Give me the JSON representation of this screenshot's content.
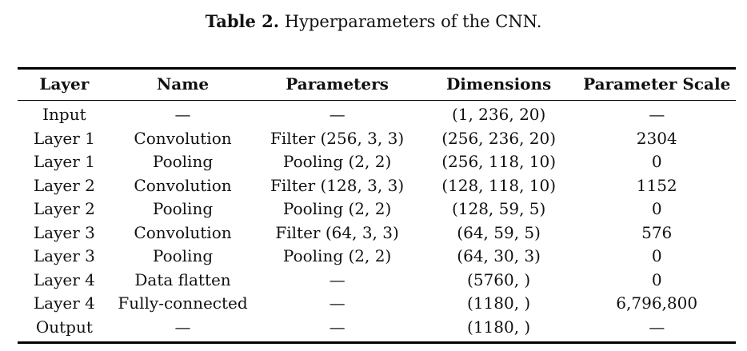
{
  "title": {
    "label": "Table 2.",
    "text": " Hyperparameters of the CNN."
  },
  "table": {
    "headers": [
      "Layer",
      "Name",
      "Parameters",
      "Dimensions",
      "Parameter Scale"
    ],
    "rows": [
      [
        "Input",
        "—",
        "—",
        "(1, 236, 20)",
        "—"
      ],
      [
        "Layer 1",
        "Convolution",
        "Filter (256, 3, 3)",
        "(256, 236, 20)",
        "2304"
      ],
      [
        "Layer 1",
        "Pooling",
        "Pooling (2, 2)",
        "(256, 118, 10)",
        "0"
      ],
      [
        "Layer 2",
        "Convolution",
        "Filter (128, 3, 3)",
        "(128, 118, 10)",
        "1152"
      ],
      [
        "Layer 2",
        "Pooling",
        "Pooling (2, 2)",
        "(128, 59, 5)",
        "0"
      ],
      [
        "Layer 3",
        "Convolution",
        "Filter (64, 3, 3)",
        "(64, 59, 5)",
        "576"
      ],
      [
        "Layer 3",
        "Pooling",
        "Pooling (2, 2)",
        "(64, 30, 3)",
        "0"
      ],
      [
        "Layer 4",
        "Data flatten",
        "—",
        "(5760, )",
        "0"
      ],
      [
        "Layer 4",
        "Fully-connected",
        "—",
        "(1180, )",
        "6,796,800"
      ],
      [
        "Output",
        "—",
        "—",
        "(1180, )",
        "—"
      ]
    ]
  },
  "colors": {
    "background": "#ffffff",
    "text": "#111111",
    "rule": "#000000"
  }
}
